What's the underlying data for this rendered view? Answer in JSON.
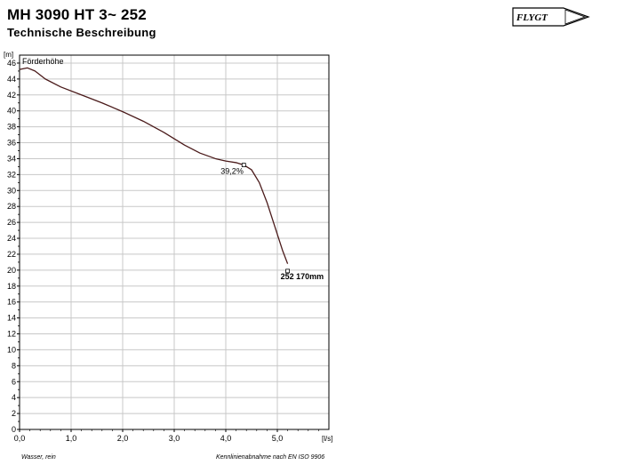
{
  "header": {
    "title": "MH 3090 HT 3~ 252",
    "subtitle": "Technische Beschreibung",
    "logo_text": "FLYGT"
  },
  "footer": {
    "left": "Wasser, rein",
    "right": "Kennlinienabnahme nach EN ISO 9906"
  },
  "colors": {
    "curve": "#4a1a1a",
    "grid": "#c8c8c8",
    "axis": "#000000"
  },
  "chart_data": {
    "type": "line",
    "title": "Förderhöhe",
    "xlabel": "[l/s]",
    "ylabel": "[m]",
    "xlim": [
      0,
      6
    ],
    "ylim": [
      0,
      47
    ],
    "x_ticks": [
      "0,0",
      "1,0",
      "2,0",
      "3,0",
      "4,0",
      "5,0"
    ],
    "y_ticks": [
      "0",
      "2",
      "4",
      "6",
      "8",
      "10",
      "12",
      "14",
      "16",
      "18",
      "20",
      "22",
      "24",
      "26",
      "28",
      "30",
      "32",
      "34",
      "36",
      "38",
      "40",
      "42",
      "44",
      "46"
    ],
    "grid": true,
    "series": [
      {
        "name": "252 170mm",
        "x": [
          0.0,
          0.15,
          0.3,
          0.5,
          0.8,
          1.2,
          1.6,
          2.0,
          2.4,
          2.8,
          3.2,
          3.5,
          3.8,
          4.0,
          4.2,
          4.35,
          4.5,
          4.65,
          4.8,
          4.95,
          5.1,
          5.2
        ],
        "y": [
          45.2,
          45.4,
          45.0,
          44.0,
          43.0,
          42.0,
          41.0,
          39.9,
          38.7,
          37.3,
          35.7,
          34.7,
          34.0,
          33.7,
          33.5,
          33.2,
          32.6,
          31.0,
          28.5,
          25.5,
          22.5,
          20.8
        ]
      }
    ],
    "annotations": [
      {
        "text": "39,2%",
        "x": 4.35,
        "y": 33.2
      },
      {
        "text": "252 170mm",
        "x": 5.2,
        "y": 20.0
      }
    ]
  }
}
